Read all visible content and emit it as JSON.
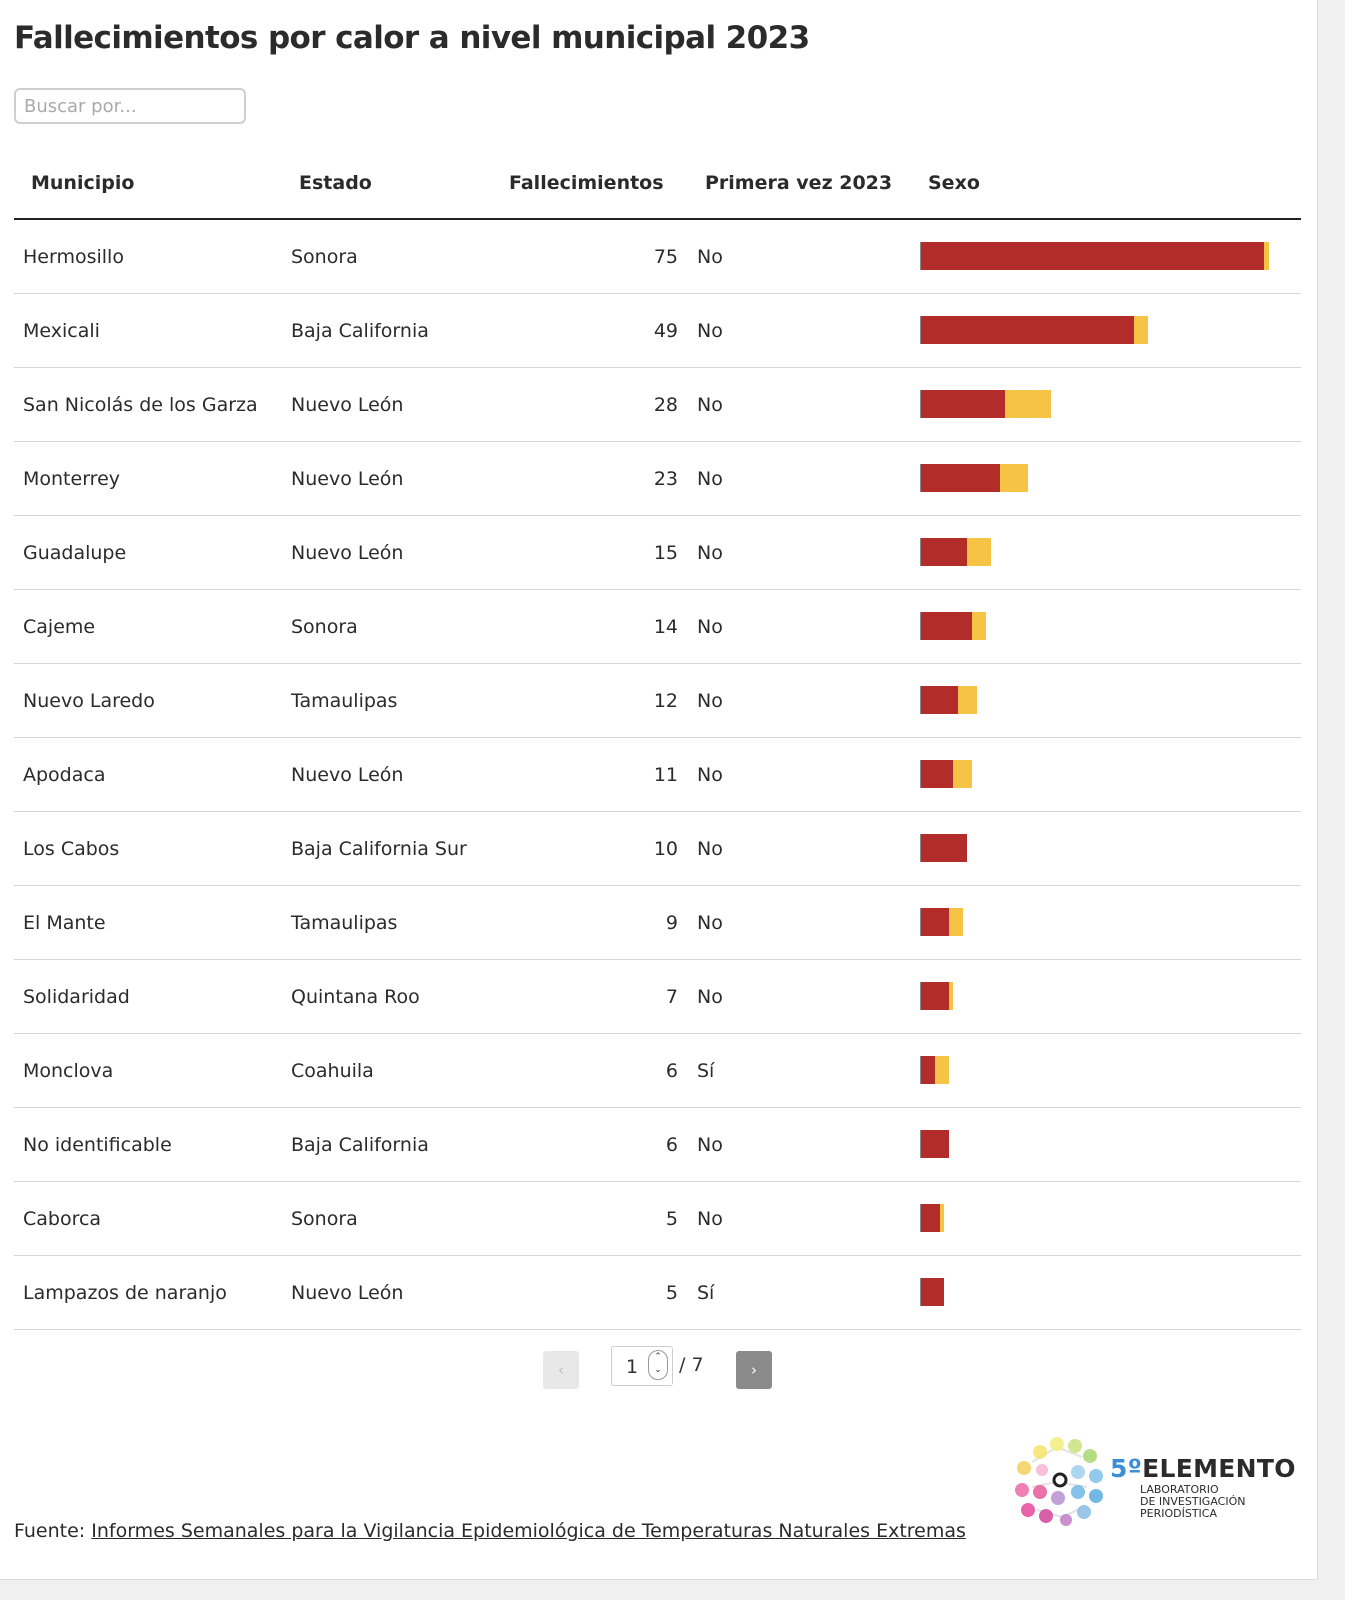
{
  "title": "Fallecimientos por calor a nivel municipal 2023",
  "search": {
    "placeholder": "Buscar por..."
  },
  "table": {
    "headers": {
      "municipio": "Municipio",
      "estado": "Estado",
      "fallecimientos": "Fallecimientos",
      "primera_vez": "Primera vez 2023",
      "sexo": "Sexo"
    },
    "bar_scale_max": 75,
    "colors": {
      "hombres": "#b22d2a",
      "mujeres": "#f6c444"
    },
    "rows": [
      {
        "municipio": "Hermosillo",
        "estado": "Sonora",
        "fallecimientos": "75",
        "primera_vez": "No",
        "hombres": 74,
        "mujeres": 1
      },
      {
        "municipio": "Mexicali",
        "estado": "Baja California",
        "fallecimientos": "49",
        "primera_vez": "No",
        "hombres": 46,
        "mujeres": 3
      },
      {
        "municipio": "San Nicolás de los Garza",
        "estado": "Nuevo León",
        "fallecimientos": "28",
        "primera_vez": "No",
        "hombres": 18,
        "mujeres": 10
      },
      {
        "municipio": "Monterrey",
        "estado": "Nuevo León",
        "fallecimientos": "23",
        "primera_vez": "No",
        "hombres": 17,
        "mujeres": 6
      },
      {
        "municipio": "Guadalupe",
        "estado": "Nuevo León",
        "fallecimientos": "15",
        "primera_vez": "No",
        "hombres": 10,
        "mujeres": 5
      },
      {
        "municipio": "Cajeme",
        "estado": "Sonora",
        "fallecimientos": "14",
        "primera_vez": "No",
        "hombres": 11,
        "mujeres": 3
      },
      {
        "municipio": "Nuevo Laredo",
        "estado": "Tamaulipas",
        "fallecimientos": "12",
        "primera_vez": "No",
        "hombres": 8,
        "mujeres": 4
      },
      {
        "municipio": "Apodaca",
        "estado": "Nuevo León",
        "fallecimientos": "11",
        "primera_vez": "No",
        "hombres": 7,
        "mujeres": 4
      },
      {
        "municipio": "Los Cabos",
        "estado": "Baja California Sur",
        "fallecimientos": "10",
        "primera_vez": "No",
        "hombres": 10,
        "mujeres": 0
      },
      {
        "municipio": "El Mante",
        "estado": "Tamaulipas",
        "fallecimientos": "9",
        "primera_vez": "No",
        "hombres": 6,
        "mujeres": 3
      },
      {
        "municipio": "Solidaridad",
        "estado": "Quintana Roo",
        "fallecimientos": "7",
        "primera_vez": "No",
        "hombres": 6,
        "mujeres": 1
      },
      {
        "municipio": "Monclova",
        "estado": "Coahuila",
        "fallecimientos": "6",
        "primera_vez": "Sí",
        "hombres": 3,
        "mujeres": 3
      },
      {
        "municipio": "No identificable",
        "estado": "Baja California",
        "fallecimientos": "6",
        "primera_vez": "No",
        "hombres": 6,
        "mujeres": 0
      },
      {
        "municipio": "Caborca",
        "estado": "Sonora",
        "fallecimientos": "5",
        "primera_vez": "No",
        "hombres": 4,
        "mujeres": 1
      },
      {
        "municipio": "Lampazos de naranjo",
        "estado": "Nuevo León",
        "fallecimientos": "5",
        "primera_vez": "Sí",
        "hombres": 5,
        "mujeres": 0
      }
    ]
  },
  "pagination": {
    "prev_label": "‹",
    "next_label": "›",
    "current_page": "1",
    "total_label": "/ 7",
    "spin_up": "⌃",
    "spin_down": "⌄"
  },
  "source": {
    "prefix": "Fuente: ",
    "link_text": "Informes Semanales para la Vigilancia Epidemiológica de Temperaturas Naturales Extremas"
  },
  "logo": {
    "brand_number": "5º",
    "brand_name": "ELEMENTO",
    "subtitle": "LABORATORIO\nDE INVESTIGACIÓN\nPERIODÍSTICA"
  }
}
